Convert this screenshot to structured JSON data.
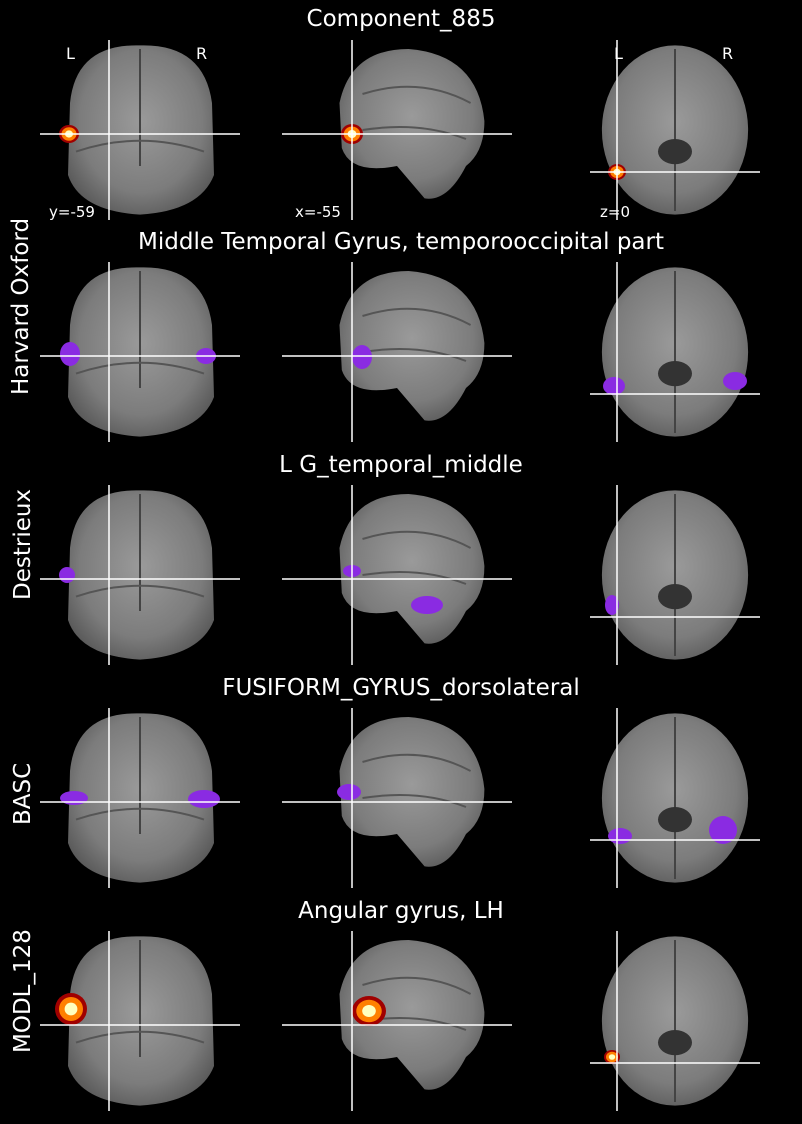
{
  "figure": {
    "rows": [
      {
        "title": "Component_885",
        "row_label": "",
        "coords": [
          "y=-59",
          "x=-55",
          "z=0"
        ],
        "orientation_labels": [
          "L",
          "R",
          "L",
          "R"
        ],
        "overlay": "hot"
      },
      {
        "title": "Middle Temporal Gyrus, temporooccipital part",
        "row_label": "Harvard Oxford",
        "coords": [],
        "overlay": "purple"
      },
      {
        "title": "L G_temporal_middle",
        "row_label": "Destrieux",
        "coords": [],
        "overlay": "purple"
      },
      {
        "title": "FUSIFORM_GYRUS_dorsolateral",
        "row_label": "BASC",
        "coords": [],
        "overlay": "purple"
      },
      {
        "title": "Angular gyrus, LH",
        "row_label": "MODL_128",
        "coords": [],
        "overlay": "hot"
      }
    ],
    "colors": {
      "background": "#000000",
      "crosshair": "#ffffff",
      "atlas_overlay": "#8a2be2",
      "hot_low": "#a00000",
      "hot_mid": "#ff8000",
      "hot_high": "#ffffc0"
    }
  }
}
